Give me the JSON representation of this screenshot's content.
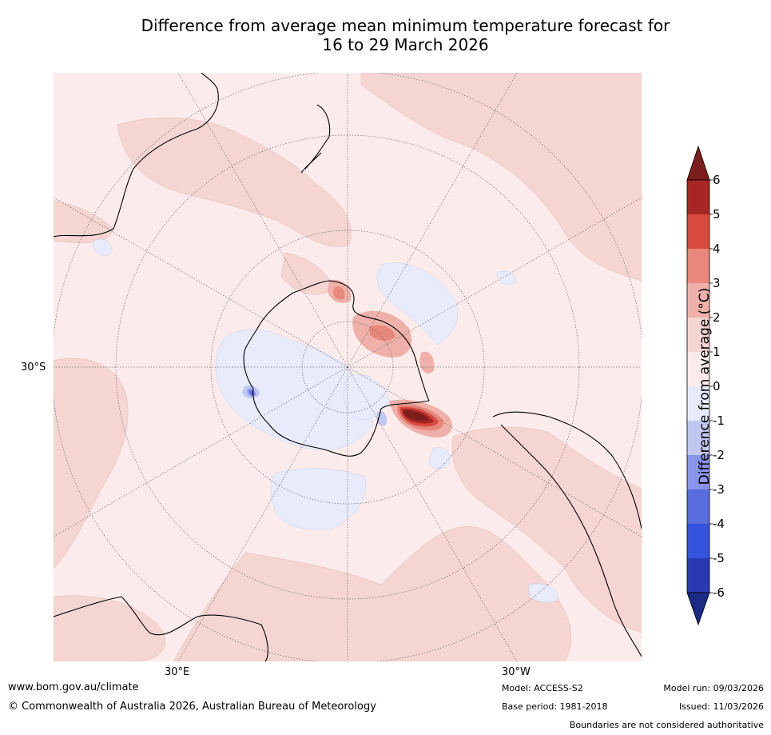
{
  "title": {
    "line1": "Difference from average mean minimum temperature forecast for",
    "line2": "16 to 29 March 2026"
  },
  "map": {
    "projection": "south-polar-stereographic",
    "grid_labels": {
      "lat_30s": "30°S",
      "lon_30e": "30°E",
      "lon_30w": "30°W"
    }
  },
  "colorbar": {
    "label": "Difference from average (°C)",
    "tick_labels": [
      "6",
      "5",
      "4",
      "3",
      "2",
      "1",
      "0",
      "-1",
      "-2",
      "-3",
      "-4",
      "-5",
      "-6"
    ],
    "bins": [
      {
        "range": "above 6",
        "color": "#7b1d1a"
      },
      {
        "range": "5 to 6",
        "color": "#a82623"
      },
      {
        "range": "4 to 5",
        "color": "#d84a3f"
      },
      {
        "range": "3 to 4",
        "color": "#e8877c"
      },
      {
        "range": "2 to 3",
        "color": "#eeb0a9"
      },
      {
        "range": "1 to 2",
        "color": "#f4d5d1"
      },
      {
        "range": "0 to 1",
        "color": "#fbeceb"
      },
      {
        "range": "-1 to 0",
        "color": "#e8ebfa"
      },
      {
        "range": "-2 to -1",
        "color": "#c0c7f1"
      },
      {
        "range": "-3 to -2",
        "color": "#8995ea"
      },
      {
        "range": "-4 to -3",
        "color": "#5a6ddf"
      },
      {
        "range": "-5 to -4",
        "color": "#3352de"
      },
      {
        "range": "-6 to -5",
        "color": "#2839b2"
      },
      {
        "range": "below -6",
        "color": "#1c2b86"
      }
    ]
  },
  "footer": {
    "website": "www.bom.gov.au/climate",
    "copyright": "© Commonwealth of Australia 2026, Australian Bureau of Meteorology",
    "model": "Model: ACCESS-S2",
    "base_period": "Base period: 1981-2018",
    "model_run": "Model run: 09/03/2026",
    "issued": "Issued: 11/03/2026",
    "disclaimer": "Boundaries are not considered authoritative"
  }
}
